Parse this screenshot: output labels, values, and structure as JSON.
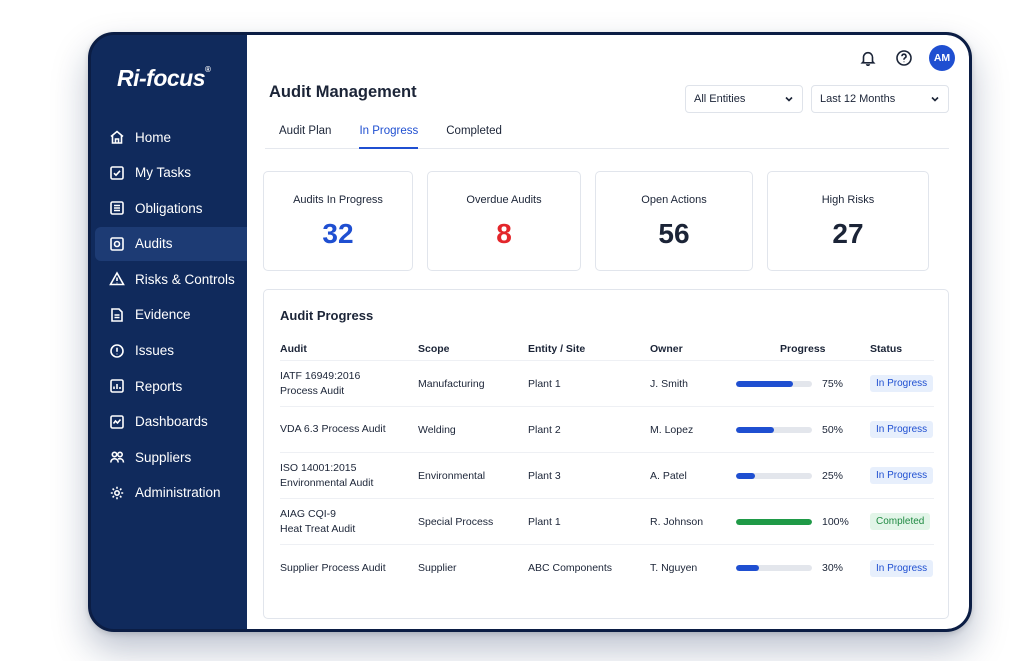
{
  "app": {
    "logo": "Ri-focus",
    "logo_mark": "®"
  },
  "sidebar": {
    "items": [
      {
        "label": "Home",
        "icon": "home-icon"
      },
      {
        "label": "My Tasks",
        "icon": "checkbox-icon"
      },
      {
        "label": "Obligations",
        "icon": "list-icon"
      },
      {
        "label": "Audits",
        "icon": "audit-icon",
        "active": true
      },
      {
        "label": "Risks & Controls",
        "icon": "warning-icon"
      },
      {
        "label": "Evidence",
        "icon": "folder-icon"
      },
      {
        "label": "Issues",
        "icon": "alert-circle-icon"
      },
      {
        "label": "Reports",
        "icon": "report-icon"
      },
      {
        "label": "Dashboards",
        "icon": "dashboard-icon"
      },
      {
        "label": "Suppliers",
        "icon": "users-icon"
      },
      {
        "label": "Administration",
        "icon": "gear-icon"
      }
    ]
  },
  "header": {
    "title": "Audit Management",
    "avatar_initials": "AM",
    "filter_entities": "All Entities",
    "filter_period": "Last 12 Months"
  },
  "tabs": [
    {
      "label": "Audit Plan"
    },
    {
      "label": "In Progress",
      "active": true
    },
    {
      "label": "Completed"
    }
  ],
  "stats": [
    {
      "label": "Audits In Progress",
      "value": "32",
      "color": "#1f4fd1"
    },
    {
      "label": "Overdue Audits",
      "value": "8",
      "color": "#e3262b"
    },
    {
      "label": "Open Actions",
      "value": "56",
      "color": "#1b2437"
    },
    {
      "label": "High Risks",
      "value": "27",
      "color": "#1b2437"
    }
  ],
  "table": {
    "title": "Audit Progress",
    "columns": [
      "Audit",
      "Scope",
      "Entity / Site",
      "Owner",
      "Progress",
      "Status"
    ],
    "rows": [
      {
        "audit_line1": "IATF 16949:2016",
        "audit_line2": "Process Audit",
        "scope": "Manufacturing",
        "entity": "Plant 1",
        "owner": "J. Smith",
        "progress": 75,
        "progress_label": "75%",
        "status": "In Progress"
      },
      {
        "audit_line1": "VDA 6.3 Process Audit",
        "audit_line2": "",
        "scope": "Welding",
        "entity": "Plant 2",
        "owner": "M. Lopez",
        "progress": 50,
        "progress_label": "50%",
        "status": "In Progress"
      },
      {
        "audit_line1": "ISO 14001:2015",
        "audit_line2": "Environmental Audit",
        "scope": "Environmental",
        "entity": "Plant 3",
        "owner": "A. Patel",
        "progress": 25,
        "progress_label": "25%",
        "status": "In Progress"
      },
      {
        "audit_line1": "AIAG CQI-9",
        "audit_line2": "Heat Treat Audit",
        "scope": "Special Process",
        "entity": "Plant 1",
        "owner": "R. Johnson",
        "progress": 100,
        "progress_label": "100%",
        "status": "Completed"
      },
      {
        "audit_line1": "Supplier Process Audit",
        "audit_line2": "",
        "scope": "Supplier",
        "entity": "ABC Components",
        "owner": "T. Nguyen",
        "progress": 30,
        "progress_label": "30%",
        "status": "In Progress"
      }
    ]
  }
}
